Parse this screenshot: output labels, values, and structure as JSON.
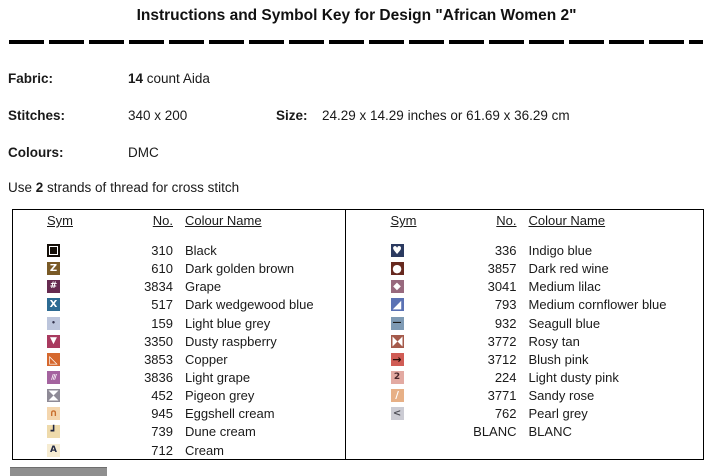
{
  "title": "Instructions and Symbol Key for Design \"African Women 2\"",
  "info": {
    "fabric_label": "Fabric:",
    "fabric_value": "14 count Aida",
    "fabric_value_bold": "14",
    "fabric_value_rest": " count Aida",
    "stitches_label": "Stitches:",
    "stitches_value": "340 x 200",
    "size_label": "Size:",
    "size_value": "24.29 x 14.29 inches or 61.69 x 36.29 cm",
    "colours_label": "Colours:",
    "colours_value": "DMC",
    "strands_prefix": "Use ",
    "strands_bold": "2",
    "strands_suffix": " strands of thread for cross stitch"
  },
  "key_table": {
    "headers": {
      "sym": "Sym",
      "no": "No.",
      "name": "Colour Name"
    },
    "left_rows": [
      {
        "no": "310",
        "name": "Black",
        "sym": {
          "icon": "open-square-icon",
          "type": "outline-square",
          "bg": "#140e08",
          "fg": "#ffffff"
        }
      },
      {
        "no": "610",
        "name": "Dark golden brown",
        "sym": {
          "icon": "letter-z-icon",
          "glyph": "Z",
          "bg": "#7a5a26",
          "fg": "#ffffff",
          "fs": 10
        }
      },
      {
        "no": "3834",
        "name": "Grape",
        "sym": {
          "icon": "hash-icon",
          "glyph": "#",
          "bg": "#662a50",
          "fg": "#ffffff",
          "fs": 9
        }
      },
      {
        "no": "517",
        "name": "Dark wedgewood blue",
        "sym": {
          "icon": "letter-x-icon",
          "glyph": "X",
          "bg": "#2d6b93",
          "fg": "#ffffff",
          "fs": 10
        }
      },
      {
        "no": "159",
        "name": "Light blue grey",
        "sym": {
          "icon": "dot-icon",
          "glyph": "•",
          "bg": "#bcc5dc",
          "fg": "#35354f",
          "fs": 7
        }
      },
      {
        "no": "3350",
        "name": "Dusty raspberry",
        "sym": {
          "icon": "triangle-down-icon",
          "glyph": "▼",
          "bg": "#a93a5f",
          "fg": "#ffffff",
          "fs": 9
        }
      },
      {
        "no": "3853",
        "name": "Copper",
        "sym": {
          "icon": "triangle-outline-icon",
          "glyph": "◺",
          "bg": "#d5682e",
          "fg": "#ffffff",
          "fs": 11
        }
      },
      {
        "no": "3836",
        "name": "Light grape",
        "sym": {
          "icon": "slashes-icon",
          "glyph": "///",
          "bg": "#a4639f",
          "fg": "#ffffff",
          "fs": 7,
          "cls": "slashes"
        }
      },
      {
        "no": "452",
        "name": "Pigeon grey",
        "sym": {
          "icon": "hourglass-icon",
          "type": "hourglass",
          "bg": "#8e8a96",
          "fg": "#ffffff"
        }
      },
      {
        "no": "945",
        "name": "Eggshell cream",
        "sym": {
          "icon": "arch-icon",
          "glyph": "∩",
          "bg": "#f4d6ae",
          "fg": "#c96f2e",
          "fs": 10
        }
      },
      {
        "no": "739",
        "name": "Dune cream",
        "sym": {
          "icon": "corner-icon",
          "glyph": "┛",
          "bg": "#eedaab",
          "fg": "#1d2340",
          "fs": 10
        }
      },
      {
        "no": "712",
        "name": "Cream",
        "sym": {
          "icon": "letter-a-icon",
          "glyph": "A",
          "bg": "#f6ecd2",
          "fg": "#232a45",
          "fs": 9
        }
      }
    ],
    "right_rows": [
      {
        "no": "336",
        "name": "Indigo blue",
        "sym": {
          "icon": "heart-icon",
          "glyph": "♥",
          "bg": "#2b3a60",
          "fg": "#ffffff",
          "fs": 11
        }
      },
      {
        "no": "3857",
        "name": "Dark red wine",
        "sym": {
          "icon": "circle-icon",
          "glyph": "●",
          "bg": "#67291f",
          "fg": "#ffffff",
          "fs": 11
        }
      },
      {
        "no": "3041",
        "name": "Medium lilac",
        "sym": {
          "icon": "diamond-icon",
          "glyph": "◆",
          "bg": "#98697e",
          "fg": "#ffffff",
          "fs": 10
        }
      },
      {
        "no": "793",
        "name": "Medium cornflower blue",
        "sym": {
          "icon": "triangle-lower-right-icon",
          "glyph": "◢",
          "bg": "#5b72b4",
          "fg": "#ffffff",
          "fs": 11
        }
      },
      {
        "no": "932",
        "name": "Seagull blue",
        "sym": {
          "icon": "dash-icon",
          "glyph": "—",
          "bg": "#7e9ab4",
          "fg": "#1c1c1c",
          "fs": 9
        }
      },
      {
        "no": "3772",
        "name": "Rosy tan",
        "sym": {
          "icon": "bowtie-icon",
          "type": "bowtie",
          "bg": "#a55a4b",
          "fg": "#ffffff"
        }
      },
      {
        "no": "3712",
        "name": "Blush pink",
        "sym": {
          "icon": "arrow-right-icon",
          "glyph": "→",
          "bg": "#d05c55",
          "fg": "#2a0f0a",
          "fs": 11
        }
      },
      {
        "no": "224",
        "name": "Light dusty pink",
        "sym": {
          "icon": "digit-2-icon",
          "glyph": "2",
          "bg": "#e3aaa2",
          "fg": "#4a272b",
          "fs": 9
        }
      },
      {
        "no": "3771",
        "name": "Sandy rose",
        "sym": {
          "icon": "slash-icon",
          "glyph": "/",
          "bg": "#e7b086",
          "fg": "#ffffff",
          "fs": 10
        }
      },
      {
        "no": "762",
        "name": "Pearl grey",
        "sym": {
          "icon": "less-than-icon",
          "glyph": "<",
          "bg": "#cbcbd3",
          "fg": "#4f4f57",
          "fs": 10
        }
      },
      {
        "no": "BLANC",
        "name": "BLANC",
        "sym": {
          "icon": "blank-icon",
          "glyph": "",
          "bg": "#ffffff",
          "fg": "#ffffff"
        }
      }
    ]
  },
  "accent_colors": {
    "border": "#000000",
    "scrollbar_thumb": "#8f8f8f"
  }
}
